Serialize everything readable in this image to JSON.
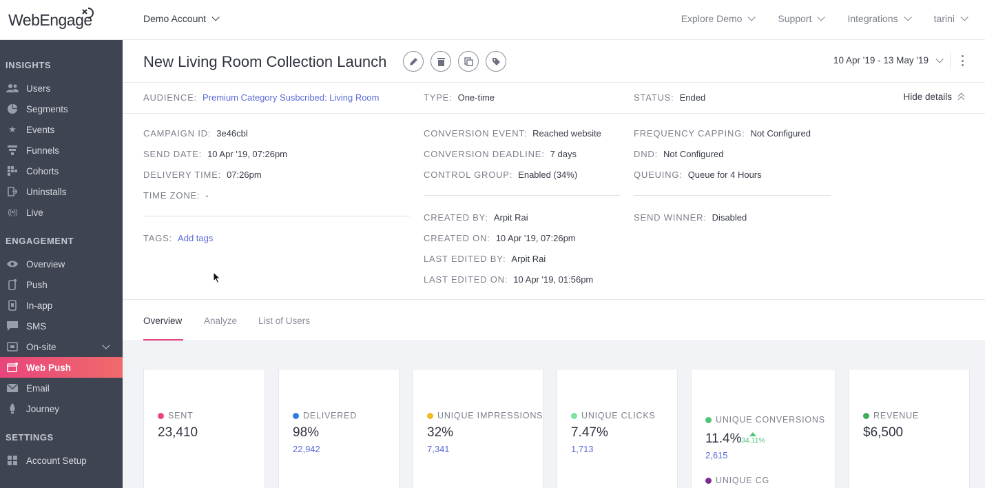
{
  "brand": {
    "logo_text": "WebEngage",
    "accent": "#e8457c"
  },
  "header": {
    "account": "Demo Account",
    "nav": [
      "Explore Demo",
      "Support",
      "Integrations",
      "tarini"
    ]
  },
  "sidebar": {
    "insights_title": "INSIGHTS",
    "insights": [
      {
        "label": "Users",
        "icon": "users-icon"
      },
      {
        "label": "Segments",
        "icon": "segments-icon"
      },
      {
        "label": "Events",
        "icon": "events-icon"
      },
      {
        "label": "Funnels",
        "icon": "funnels-icon"
      },
      {
        "label": "Cohorts",
        "icon": "cohorts-icon"
      },
      {
        "label": "Uninstalls",
        "icon": "uninstalls-icon"
      },
      {
        "label": "Live",
        "icon": "live-icon"
      }
    ],
    "engagement_title": "ENGAGEMENT",
    "engagement": [
      {
        "label": "Overview",
        "icon": "eye-icon"
      },
      {
        "label": "Push",
        "icon": "push-icon"
      },
      {
        "label": "In-app",
        "icon": "in-app-icon"
      },
      {
        "label": "SMS",
        "icon": "sms-icon"
      },
      {
        "label": "On-site",
        "icon": "on-site-icon"
      },
      {
        "label": "Web Push",
        "icon": "web-push-icon",
        "active": true
      },
      {
        "label": "Email",
        "icon": "email-icon"
      },
      {
        "label": "Journey",
        "icon": "journey-icon"
      }
    ],
    "settings_title": "SETTINGS",
    "settings": [
      {
        "label": "Account Setup",
        "icon": "account-setup-icon"
      }
    ]
  },
  "campaign": {
    "title": "New Living Room Collection Launch",
    "date_range": "10 Apr '19 - 13 May '19",
    "hide_details": "Hide details",
    "audience": {
      "key": "AUDIENCE:",
      "value": "Premium Category Susbcribed: Living Room"
    },
    "type": {
      "key": "TYPE:",
      "value": "One-time"
    },
    "status": {
      "key": "STATUS:",
      "value": "Ended"
    },
    "campaign_id": {
      "key": "CAMPAIGN ID:",
      "value": "3e46cbl"
    },
    "send_date": {
      "key": "SEND DATE:",
      "value": "10 Apr '19, 07:26pm"
    },
    "delivery_time": {
      "key": "DELIVERY TIME:",
      "value": "07:26pm"
    },
    "time_zone": {
      "key": "TIME ZONE:",
      "value": "-"
    },
    "tags": {
      "key": "TAGS:",
      "value": "Add tags"
    },
    "conversion_event": {
      "key": "CONVERSION EVENT:",
      "value": "Reached website"
    },
    "conversion_deadline": {
      "key": "CONVERSION DEADLINE:",
      "value": "7 days"
    },
    "control_group": {
      "key": "CONTROL GROUP:",
      "value": "Enabled (34%)"
    },
    "created_by": {
      "key": "CREATED BY:",
      "value": "Arpit Rai"
    },
    "created_on": {
      "key": "CREATED ON:",
      "value": "10 Apr '19, 07:26pm"
    },
    "last_edited_by": {
      "key": "LAST EDITED BY:",
      "value": "Arpit Rai"
    },
    "last_edited_on": {
      "key": "LAST EDITED ON:",
      "value": "10 Apr '19, 01:56pm"
    },
    "frequency_capping": {
      "key": "FREQUENCY CAPPING:",
      "value": "Not Configured"
    },
    "dnd": {
      "key": "DND:",
      "value": "Not Configured"
    },
    "queuing": {
      "key": "QUEUING:",
      "value": "Queue for 4 Hours"
    },
    "send_winner": {
      "key": "SEND WINNER:",
      "value": "Disabled"
    }
  },
  "tabs": [
    "Overview",
    "Analyze",
    "List of Users"
  ],
  "stats": {
    "sent": {
      "label": "SENT",
      "value": "23,410",
      "color": "#e8457c"
    },
    "delivered": {
      "label": "DELIVERED",
      "value": "98%",
      "sub": "22,942",
      "color": "#2f7de1"
    },
    "impressions": {
      "label": "UNIQUE IMPRESSIONS",
      "value": "32%",
      "sub": "7,341",
      "color": "#f2b91e"
    },
    "clicks": {
      "label": "UNIQUE CLICKS",
      "value": "7.47%",
      "sub": "1,713",
      "color": "#7ee29e"
    },
    "conversions": {
      "label": "UNIQUE CONVERSIONS",
      "value": "11.4%",
      "lift": "34.11%",
      "sub": "2,615",
      "color": "#4cc47a",
      "cg_label": "UNIQUE CG",
      "cg_color": "#7b2f8c"
    },
    "revenue": {
      "label": "REVENUE",
      "value": "$6,500",
      "color": "#3cae5c"
    }
  }
}
